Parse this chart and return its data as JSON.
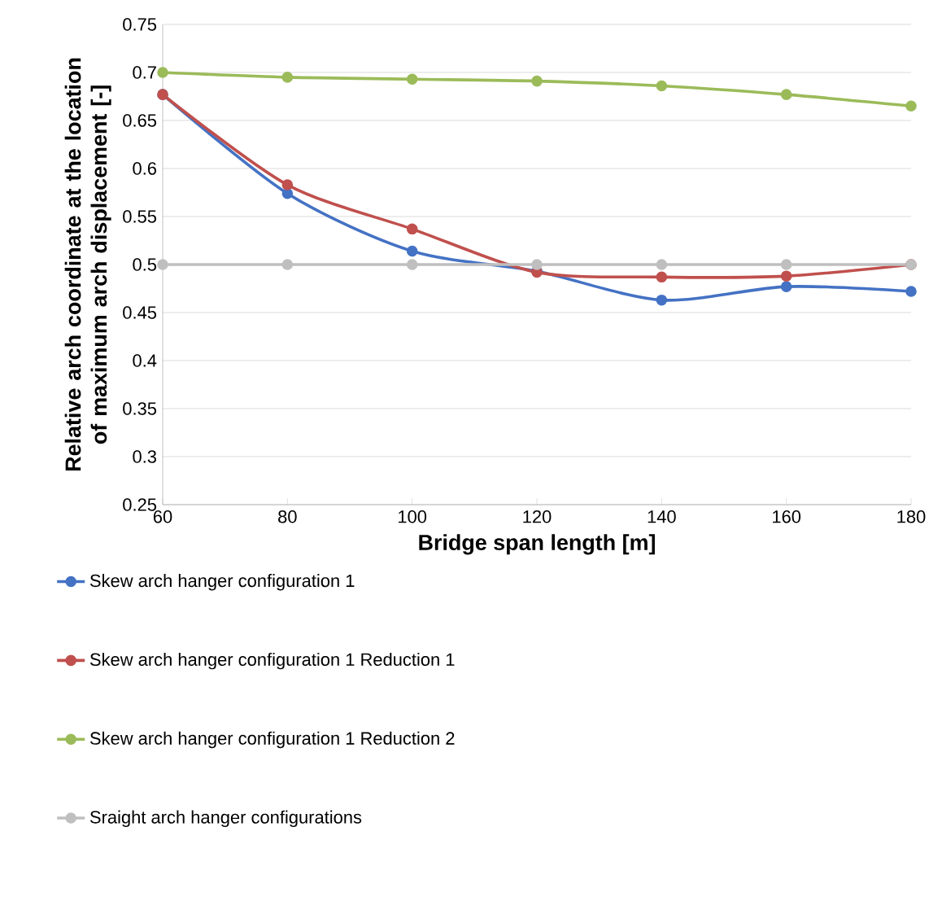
{
  "chart_data": {
    "type": "line",
    "xlabel": "Bridge span length [m]",
    "ylabel": "Relative arch coordinate at the location of maximum arch displacement [-]",
    "x": [
      60,
      80,
      100,
      120,
      140,
      160,
      180
    ],
    "series": [
      {
        "name": "Skew arch hanger configuration 1",
        "color": "#4472c4",
        "values": [
          0.677,
          0.574,
          0.514,
          0.493,
          0.463,
          0.477,
          0.472
        ]
      },
      {
        "name": "Skew arch hanger configuration 1 Reduction 1",
        "color": "#c0504d",
        "values": [
          0.677,
          0.583,
          0.537,
          0.492,
          0.487,
          0.488,
          0.5
        ]
      },
      {
        "name": "Skew arch hanger configuration 1 Reduction 2",
        "color": "#9bbb59",
        "values": [
          0.7,
          0.695,
          0.693,
          0.691,
          0.686,
          0.677,
          0.665
        ]
      },
      {
        "name": "Sraight arch hanger configurations",
        "color": "#bfbfbf",
        "values": [
          0.5,
          0.5,
          0.5,
          0.5,
          0.5,
          0.5,
          0.5
        ]
      }
    ],
    "xlim": [
      60,
      180
    ],
    "xticks": [
      60,
      80,
      100,
      120,
      140,
      160,
      180
    ],
    "ylim": [
      0.25,
      0.75
    ],
    "yticks": [
      0.25,
      0.3,
      0.35,
      0.4,
      0.45,
      0.5,
      0.55,
      0.6,
      0.65,
      0.7,
      0.75
    ],
    "grid": "y",
    "legend": "bottom",
    "marker": "circle",
    "line_style": "solid"
  }
}
